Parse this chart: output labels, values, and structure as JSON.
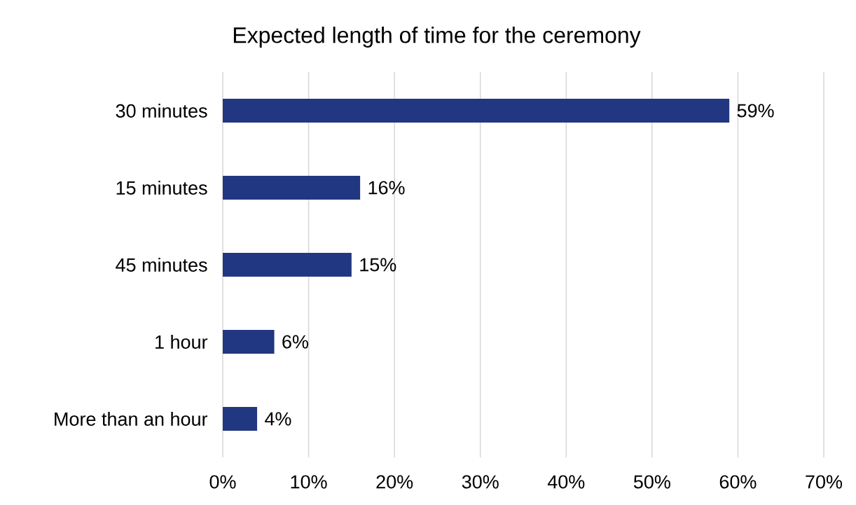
{
  "chart_data": {
    "type": "bar",
    "orientation": "horizontal",
    "title": "Expected length of time for the ceremony",
    "categories": [
      "30 minutes",
      "15 minutes",
      "45 minutes",
      "1 hour",
      "More than an hour"
    ],
    "values": [
      59,
      16,
      15,
      6,
      4
    ],
    "value_labels": [
      "59%",
      "16%",
      "15%",
      "6%",
      "4%"
    ],
    "color": "#223781",
    "xlim": [
      0,
      70
    ],
    "xticks": [
      {
        "value": 0,
        "label": "0%"
      },
      {
        "value": 10,
        "label": "10%"
      },
      {
        "value": 20,
        "label": "20%"
      },
      {
        "value": 30,
        "label": "30%"
      },
      {
        "value": 40,
        "label": "40%"
      },
      {
        "value": 50,
        "label": "50%"
      },
      {
        "value": 60,
        "label": "60%"
      },
      {
        "value": 70,
        "label": "70%"
      }
    ],
    "grid": "x"
  }
}
